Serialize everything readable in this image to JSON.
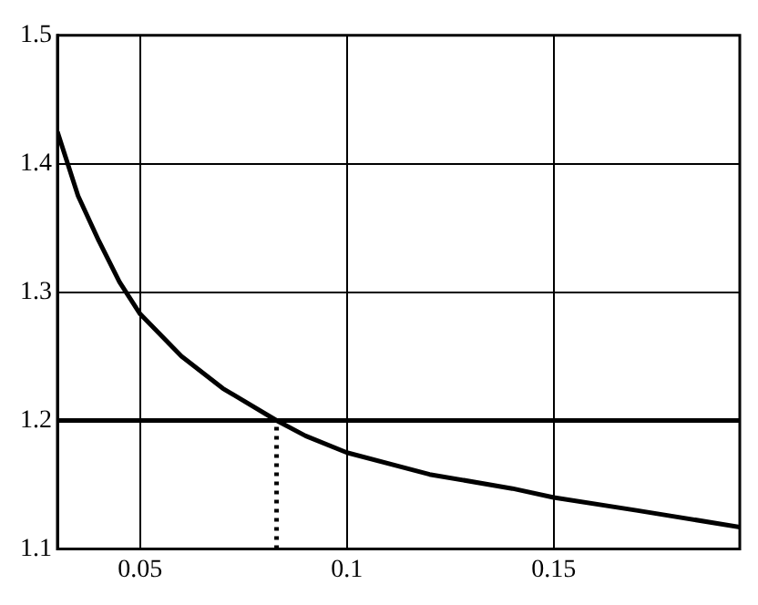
{
  "chart_data": {
    "type": "line",
    "series": [
      {
        "color": "#000000",
        "x": [
          0.03,
          0.035,
          0.04,
          0.045,
          0.05,
          0.06,
          0.07,
          0.083,
          0.09,
          0.1,
          0.12,
          0.14,
          0.15,
          0.17,
          0.195
        ],
        "values": [
          1.425,
          1.375,
          1.34,
          1.308,
          1.283,
          1.25,
          1.225,
          1.2,
          1.188,
          1.175,
          1.158,
          1.147,
          1.14,
          1.13,
          1.117
        ]
      },
      {
        "type": "line",
        "color": "#000000",
        "line_style": "dotted",
        "x": [
          0.083,
          0.083
        ],
        "values": [
          1.1,
          1.2
        ]
      }
    ],
    "ref_lines": [
      {
        "axis": "y",
        "value": 1.2,
        "color": "#000000"
      }
    ],
    "xlim": [
      0.03,
      0.195
    ],
    "xticks": [
      0.05,
      0.1,
      0.15
    ],
    "ylim": [
      1.1,
      1.5
    ],
    "yticks": [
      1.1,
      1.2,
      1.3,
      1.4,
      1.5
    ],
    "grid": true,
    "line_style": "solid",
    "marker": "none",
    "legend": false
  }
}
